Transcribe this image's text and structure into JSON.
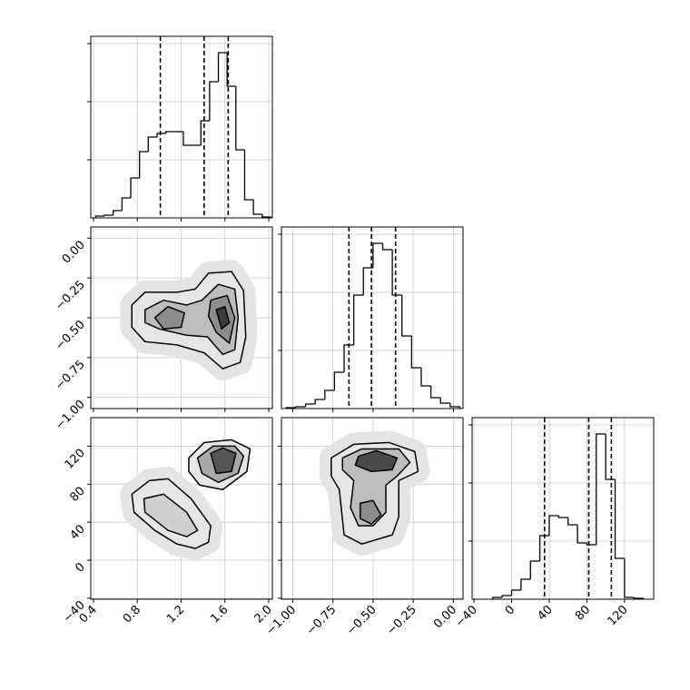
{
  "chart_data": [
    {
      "type": "histogram",
      "color": "#000000",
      "grid": true,
      "bins": [
        0.42,
        0.5,
        0.58,
        0.66,
        0.74,
        0.82,
        0.9,
        0.98,
        1.06,
        1.14,
        1.22,
        1.3,
        1.38,
        1.46,
        1.54,
        1.62,
        1.7,
        1.78,
        1.86,
        1.94,
        2.02
      ],
      "counts": [
        2,
        3,
        8,
        22,
        44,
        73,
        89,
        93,
        95,
        95,
        80,
        80,
        107,
        150,
        182,
        145,
        75,
        20,
        4,
        1
      ],
      "quantiles": [
        1.01,
        1.41,
        1.63
      ],
      "xlim": [
        0.375,
        2.033
      ],
      "xticks": [
        0.4,
        0.8,
        1.2,
        1.6,
        2
      ],
      "ylim": [
        0,
        200
      ],
      "yticks": [
        64,
        128,
        192
      ]
    },
    {
      "type": "contour",
      "grid": true,
      "xlim": [
        0.375,
        2.033
      ],
      "xticks": [
        0.4,
        0.8,
        1.2,
        1.6,
        2
      ],
      "ylim": [
        -1.07,
        0.07
      ],
      "yticks": [
        {
          "value": 0,
          "label": "0.00"
        },
        {
          "value": -0.25,
          "label": "−0.25"
        },
        {
          "value": -0.5,
          "label": "−0.50"
        },
        {
          "value": -0.75,
          "label": "−0.75"
        },
        {
          "value": -1,
          "label": "−1.00"
        }
      ],
      "contours": [
        {
          "color": "#e6e6e6",
          "x": [
            0.75,
            0.87,
            1.16,
            1.33,
            1.45,
            1.66,
            1.77,
            1.79,
            1.74,
            1.58,
            1.41,
            1.16,
            0.87,
            0.75
          ],
          "y": [
            -0.42,
            -0.34,
            -0.34,
            -0.32,
            -0.22,
            -0.21,
            -0.33,
            -0.62,
            -0.78,
            -0.82,
            -0.72,
            -0.67,
            -0.65,
            -0.56
          ]
        },
        {
          "color": "#bdbdbd",
          "x": [
            0.87,
            1.04,
            1.25,
            1.39,
            1.54,
            1.69,
            1.72,
            1.69,
            1.58,
            1.44,
            1.25,
            1.0,
            0.87
          ],
          "y": [
            -0.45,
            -0.39,
            -0.42,
            -0.39,
            -0.29,
            -0.32,
            -0.5,
            -0.7,
            -0.73,
            -0.62,
            -0.61,
            -0.57,
            -0.53
          ]
        },
        {
          "color": "#8c8c8c",
          "x": [
            0.96,
            1.08,
            1.23,
            1.2,
            1.04
          ],
          "y": [
            -0.5,
            -0.43,
            -0.47,
            -0.56,
            -0.57
          ]
        },
        {
          "color": "#8c8c8c",
          "x": [
            1.47,
            1.62,
            1.69,
            1.64,
            1.52,
            1.45
          ],
          "y": [
            -0.39,
            -0.36,
            -0.5,
            -0.66,
            -0.59,
            -0.49
          ]
        },
        {
          "color": "#3c3c3c",
          "x": [
            1.52,
            1.6,
            1.64,
            1.57
          ],
          "y": [
            -0.45,
            -0.43,
            -0.53,
            -0.57
          ]
        }
      ]
    },
    {
      "type": "histogram",
      "color": "#000000",
      "grid": true,
      "bins": [
        -1.04,
        -0.98,
        -0.92,
        -0.86,
        -0.8,
        -0.74,
        -0.68,
        -0.62,
        -0.56,
        -0.5,
        -0.44,
        -0.38,
        -0.32,
        -0.26,
        -0.2,
        -0.14,
        -0.08,
        -0.02,
        0.04
      ],
      "counts": [
        1,
        2,
        5,
        10,
        20,
        40,
        70,
        125,
        155,
        182,
        175,
        125,
        80,
        45,
        25,
        12,
        6,
        2
      ],
      "quantiles": [
        -0.65,
        -0.51,
        -0.36
      ],
      "xlim": [
        -1.07,
        0.06
      ],
      "xticks": [
        {
          "value": -1,
          "label": "−1.00"
        },
        {
          "value": -0.75,
          "label": "−0.75"
        },
        {
          "value": -0.5,
          "label": "−0.50"
        },
        {
          "value": -0.25,
          "label": "−0.25"
        },
        {
          "value": 0,
          "label": "0.00"
        }
      ],
      "ylim": [
        0,
        200
      ],
      "yticks": [
        64,
        128,
        192
      ]
    },
    {
      "type": "contour",
      "grid": true,
      "xlim": [
        0.375,
        2.033
      ],
      "xticks": [
        0.4,
        0.8,
        1.2,
        {
          "value": 1.6,
          "label": "1.6"
        },
        {
          "value": 2,
          "label": "2.0"
        }
      ],
      "ylim": [
        -41,
        150
      ],
      "yticks": [
        {
          "value": -40,
          "label": "−40"
        },
        0,
        40,
        80,
        120
      ],
      "contours": [
        {
          "color": "#e6e6e6",
          "x": [
            0.75,
            0.91,
            1.08,
            1.29,
            1.47,
            1.45,
            1.33,
            1.16,
            0.96,
            0.77
          ],
          "y": [
            69.5,
            83.8,
            85.7,
            64.8,
            36.2,
            19,
            12.4,
            17.1,
            31.4,
            50.5
          ]
        },
        {
          "color": "#cfcfcf",
          "x": [
            0.86,
            1.04,
            1.25,
            1.35,
            1.25,
            1.08,
            0.87
          ],
          "y": [
            64.8,
            69.5,
            50.5,
            31.4,
            24.8,
            31.4,
            50.5
          ]
        },
        {
          "color": "#e6e6e6",
          "x": [
            1.27,
            1.41,
            1.66,
            1.83,
            1.8,
            1.58,
            1.37,
            1.27
          ],
          "y": [
            107.6,
            123.8,
            126.7,
            117.1,
            93.3,
            74.3,
            79,
            93.3
          ]
        },
        {
          "color": "#a8a8a8",
          "x": [
            1.35,
            1.49,
            1.69,
            1.77,
            1.72,
            1.54,
            1.39
          ],
          "y": [
            107.6,
            120,
            120,
            109.5,
            91.4,
            81.9,
            91.4
          ]
        },
        {
          "color": "#555555",
          "x": [
            1.47,
            1.58,
            1.7,
            1.66,
            1.52
          ],
          "y": [
            112.4,
            118.1,
            112.4,
            93.3,
            91.4
          ]
        }
      ]
    },
    {
      "type": "contour",
      "grid": true,
      "xlim": [
        -1.07,
        0.06
      ],
      "xticks": [
        {
          "value": -1,
          "label": "−1.00"
        },
        {
          "value": -0.75,
          "label": "−0.75"
        },
        {
          "value": -0.5,
          "label": "−0.50"
        },
        {
          "value": -0.25,
          "label": "−0.25"
        },
        {
          "value": 0,
          "label": "0.00"
        }
      ],
      "ylim": [
        -41,
        150
      ],
      "yticks": [
        {
          "value": -40,
          "label": "−40"
        },
        0,
        40,
        80,
        120
      ],
      "contours": [
        {
          "color": "#e6e6e6",
          "x": [
            -0.76,
            -0.62,
            -0.4,
            -0.24,
            -0.22,
            -0.34,
            -0.34,
            -0.38,
            -0.57,
            -0.68,
            -0.71,
            -0.76
          ],
          "y": [
            107.6,
            121.9,
            123.8,
            114.3,
            93.3,
            83.8,
            45.7,
            26.7,
            17.1,
            26.7,
            74.3,
            88.6
          ]
        },
        {
          "color": "#bdbdbd",
          "x": [
            -0.69,
            -0.57,
            -0.34,
            -0.27,
            -0.35,
            -0.42,
            -0.42,
            -0.5,
            -0.59,
            -0.64,
            -0.62,
            -0.69
          ],
          "y": [
            107.6,
            117.1,
            117.1,
            102.9,
            88.6,
            79,
            50.5,
            36.2,
            36.2,
            55.2,
            83.8,
            95.2
          ]
        },
        {
          "color": "#4a4a4a",
          "x": [
            -0.59,
            -0.48,
            -0.35,
            -0.38,
            -0.51,
            -0.61
          ],
          "y": [
            109.5,
            115.2,
            107.6,
            95.2,
            93.3,
            100
          ]
        },
        {
          "color": "#8c8c8c",
          "x": [
            -0.58,
            -0.5,
            -0.45,
            -0.51,
            -0.58
          ],
          "y": [
            60,
            62.9,
            47.6,
            38.1,
            43.8
          ]
        }
      ]
    },
    {
      "type": "histogram",
      "color": "#000000",
      "grid": true,
      "bins": [
        -20,
        -10,
        0,
        10,
        20,
        30,
        40,
        50,
        60,
        70,
        80,
        90,
        100,
        110,
        120,
        130,
        140
      ],
      "counts": [
        2,
        4,
        10,
        22,
        42,
        70,
        92,
        90,
        82,
        62,
        60,
        182,
        132,
        45,
        2,
        1
      ],
      "quantiles": [
        35,
        82,
        106
      ],
      "xlim": [
        -42,
        151
      ],
      "xticks": [
        {
          "value": -40,
          "label": "−40"
        },
        0,
        40,
        80,
        120
      ],
      "ylim": [
        0,
        200
      ],
      "yticks": [
        64,
        128,
        192
      ]
    }
  ]
}
